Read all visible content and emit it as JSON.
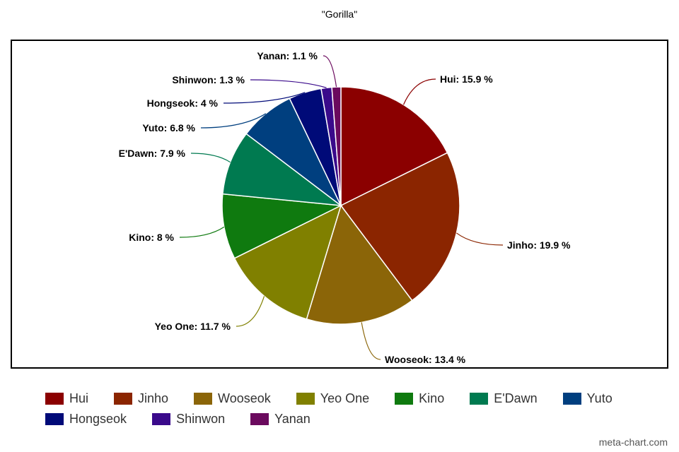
{
  "chart_data": {
    "type": "pie",
    "title": "\"Gorilla\"",
    "slices": [
      {
        "name": "Hui",
        "value": 15.9,
        "label": "Hui: 15.9 %",
        "color": "#8b0000"
      },
      {
        "name": "Jinho",
        "value": 19.9,
        "label": "Jinho: 19.9 %",
        "color": "#8b2500"
      },
      {
        "name": "Wooseok",
        "value": 13.4,
        "label": "Wooseok: 13.4 %",
        "color": "#8b6508"
      },
      {
        "name": "Yeo One",
        "value": 11.7,
        "label": "Yeo One: 11.7 %",
        "color": "#808000"
      },
      {
        "name": "Kino",
        "value": 8,
        "label": "Kino: 8 %",
        "color": "#0f7a0f"
      },
      {
        "name": "E'Dawn",
        "value": 7.9,
        "label": "E'Dawn: 7.9 %",
        "color": "#007a50"
      },
      {
        "name": "Yuto",
        "value": 6.8,
        "label": "Yuto: 6.8 %",
        "color": "#003f7f"
      },
      {
        "name": "Hongseok",
        "value": 4,
        "label": "Hongseok: 4 %",
        "color": "#000a78"
      },
      {
        "name": "Shinwon",
        "value": 1.3,
        "label": "Shinwon: 1.3 %",
        "color": "#3a0a8b"
      },
      {
        "name": "Yanan",
        "value": 1.1,
        "label": "Yanan: 1.1 %",
        "color": "#6b0a5e"
      }
    ],
    "legend_position": "bottom"
  },
  "legend_rows": [
    [
      "Hui",
      "Jinho",
      "Wooseok",
      "Yeo One",
      "Kino",
      "E'Dawn",
      "Yuto"
    ],
    [
      "Hongseok",
      "Shinwon",
      "Yanan"
    ]
  ],
  "watermark": "meta-chart.com"
}
